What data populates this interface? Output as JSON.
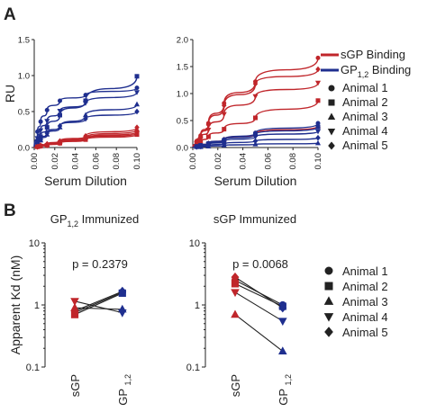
{
  "figure": {
    "panel_a_label": "A",
    "panel_b_label": "B"
  },
  "colors": {
    "red": "#c0262b",
    "blue": "#1f2f8f",
    "dark": "#222222"
  },
  "panel_a_legend": {
    "line_items": [
      {
        "name": "sGP Binding",
        "color": "red"
      },
      {
        "name": "GP",
        "sub": "1,2",
        "suffix": " Binding",
        "color": "blue"
      }
    ],
    "markers": [
      {
        "name": "Animal 1",
        "shape": "circle"
      },
      {
        "name": "Animal 2",
        "shape": "square"
      },
      {
        "name": "Animal 3",
        "shape": "triangle-up"
      },
      {
        "name": "Animal 4",
        "shape": "triangle-down"
      },
      {
        "name": "Animal 5",
        "shape": "diamond"
      }
    ]
  },
  "panel_b_legend": {
    "markers": [
      {
        "name": "Animal 1",
        "shape": "circle"
      },
      {
        "name": "Animal 2",
        "shape": "square"
      },
      {
        "name": "Animal 3",
        "shape": "triangle-up"
      },
      {
        "name": "Animal 4",
        "shape": "triangle-down"
      },
      {
        "name": "Animal 5",
        "shape": "diamond"
      }
    ]
  },
  "chart_data": [
    {
      "id": "a-left",
      "type": "line",
      "xlabel": "Serum Dilution",
      "ylabel": "RU",
      "xlim": [
        0,
        0.1
      ],
      "ylim": [
        0,
        1.5
      ],
      "xticks": [
        "0.00",
        "0.02",
        "0.04",
        "0.06",
        "0.08",
        "0.10"
      ],
      "yticks": [
        "0.0",
        "0.5",
        "1.0",
        "1.5"
      ],
      "x": [
        0.0,
        0.003125,
        0.00625,
        0.0125,
        0.025,
        0.05,
        0.1
      ],
      "series": [
        {
          "group": "blue",
          "marker": "circle",
          "values": [
            0.0,
            0.22,
            0.36,
            0.52,
            0.65,
            0.73,
            0.83
          ]
        },
        {
          "group": "blue",
          "marker": "square",
          "values": [
            0.0,
            0.08,
            0.15,
            0.28,
            0.45,
            0.65,
            0.99
          ]
        },
        {
          "group": "blue",
          "marker": "triangle-up",
          "values": [
            0.0,
            0.05,
            0.1,
            0.18,
            0.28,
            0.45,
            0.6
          ]
        },
        {
          "group": "blue",
          "marker": "triangle-down",
          "values": [
            0.0,
            0.13,
            0.24,
            0.37,
            0.51,
            0.62,
            0.77
          ]
        },
        {
          "group": "blue",
          "marker": "diamond",
          "values": [
            0.0,
            0.06,
            0.11,
            0.2,
            0.3,
            0.4,
            0.5
          ]
        },
        {
          "group": "red",
          "marker": "circle",
          "values": [
            0.0,
            0.01,
            0.02,
            0.04,
            0.07,
            0.13,
            0.22
          ]
        },
        {
          "group": "red",
          "marker": "square",
          "values": [
            0.0,
            0.01,
            0.02,
            0.03,
            0.06,
            0.11,
            0.18
          ]
        },
        {
          "group": "red",
          "marker": "triangle-up",
          "values": [
            0.0,
            0.01,
            0.02,
            0.04,
            0.08,
            0.14,
            0.25
          ]
        },
        {
          "group": "red",
          "marker": "triangle-down",
          "values": [
            0.0,
            0.01,
            0.02,
            0.03,
            0.06,
            0.12,
            0.2
          ]
        },
        {
          "group": "red",
          "marker": "diamond",
          "values": [
            0.0,
            0.01,
            0.03,
            0.05,
            0.09,
            0.16,
            0.28
          ]
        }
      ]
    },
    {
      "id": "a-right",
      "type": "line",
      "xlabel": "Serum Dilution",
      "ylabel": "",
      "xlim": [
        0,
        0.1
      ],
      "ylim": [
        0,
        2.0
      ],
      "xticks": [
        "0.00",
        "0.02",
        "0.04",
        "0.06",
        "0.08",
        "0.10"
      ],
      "yticks": [
        "0.0",
        "0.5",
        "1.0",
        "1.5",
        "2.0"
      ],
      "x": [
        0.0,
        0.003125,
        0.00625,
        0.0125,
        0.025,
        0.05,
        0.1
      ],
      "series": [
        {
          "group": "red",
          "marker": "circle",
          "values": [
            0.0,
            0.12,
            0.22,
            0.45,
            0.82,
            1.22,
            1.66
          ]
        },
        {
          "group": "red",
          "marker": "diamond",
          "values": [
            0.0,
            0.1,
            0.2,
            0.42,
            0.78,
            1.18,
            1.45
          ]
        },
        {
          "group": "red",
          "marker": "triangle-down",
          "values": [
            0.0,
            0.08,
            0.16,
            0.33,
            0.62,
            0.95,
            1.2
          ]
        },
        {
          "group": "red",
          "marker": "square",
          "values": [
            0.0,
            0.06,
            0.1,
            0.2,
            0.34,
            0.55,
            0.87
          ]
        },
        {
          "group": "red",
          "marker": "triangle-up",
          "values": [
            0.0,
            0.02,
            0.04,
            0.08,
            0.15,
            0.26,
            0.4
          ]
        },
        {
          "group": "blue",
          "marker": "circle",
          "values": [
            0.0,
            0.02,
            0.04,
            0.08,
            0.15,
            0.27,
            0.45
          ]
        },
        {
          "group": "blue",
          "marker": "square",
          "values": [
            0.0,
            0.02,
            0.04,
            0.07,
            0.13,
            0.24,
            0.38
          ]
        },
        {
          "group": "blue",
          "marker": "triangle-down",
          "values": [
            0.0,
            0.02,
            0.03,
            0.06,
            0.11,
            0.2,
            0.3
          ]
        },
        {
          "group": "blue",
          "marker": "diamond",
          "values": [
            0.0,
            0.01,
            0.02,
            0.04,
            0.07,
            0.12,
            0.18
          ]
        },
        {
          "group": "blue",
          "marker": "triangle-up",
          "values": [
            0.0,
            0.01,
            0.01,
            0.02,
            0.04,
            0.06,
            0.08
          ]
        }
      ]
    },
    {
      "id": "b-left",
      "type": "scatter",
      "title": "GP",
      "title_sub": "1,2",
      "title_suffix": " Immunized",
      "ylabel": "Apparent Kd  (nM)",
      "yscale": "log",
      "ylim": [
        0.1,
        10
      ],
      "yticks": [
        "0.1",
        "1",
        "10"
      ],
      "categories": [
        {
          "main": "sGP",
          "sub": ""
        },
        {
          "main": "GP",
          "sub": "1,2"
        }
      ],
      "pvalue": "p = 0.2379",
      "series": [
        {
          "marker": "circle",
          "values": [
            0.75,
            1.6
          ]
        },
        {
          "marker": "square",
          "values": [
            0.7,
            1.55
          ]
        },
        {
          "marker": "triangle-up",
          "values": [
            0.9,
            0.85
          ]
        },
        {
          "marker": "triangle-down",
          "values": [
            1.15,
            0.75
          ]
        },
        {
          "marker": "diamond",
          "values": [
            0.8,
            1.65
          ]
        }
      ]
    },
    {
      "id": "b-right",
      "type": "scatter",
      "title": "sGP Immunized",
      "ylabel": "",
      "yscale": "log",
      "ylim": [
        0.1,
        10
      ],
      "yticks": [
        "0.1",
        "1",
        "10"
      ],
      "categories": [
        {
          "main": "sGP",
          "sub": ""
        },
        {
          "main": "GP",
          "sub": "1,2"
        }
      ],
      "pvalue": "p = 0.0068",
      "series": [
        {
          "marker": "circle",
          "values": [
            2.5,
            1.0
          ]
        },
        {
          "marker": "square",
          "values": [
            2.2,
            0.95
          ]
        },
        {
          "marker": "triangle-up",
          "values": [
            0.7,
            0.18
          ]
        },
        {
          "marker": "triangle-down",
          "values": [
            1.6,
            0.55
          ]
        },
        {
          "marker": "diamond",
          "values": [
            2.8,
            0.9
          ]
        }
      ]
    }
  ]
}
